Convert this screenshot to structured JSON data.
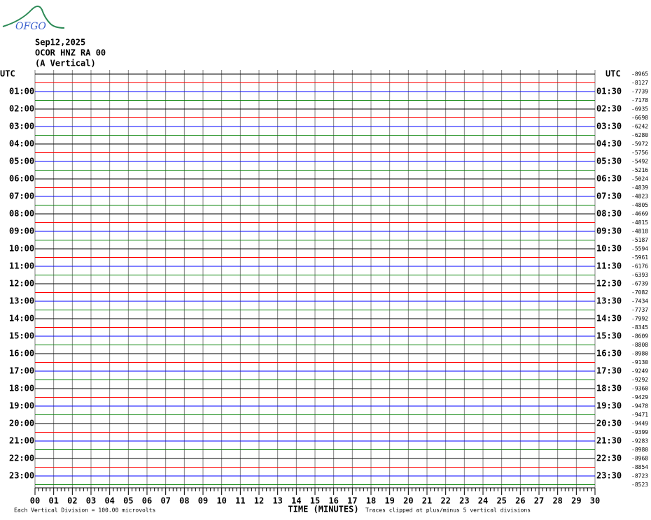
{
  "logo": "OFGO",
  "header": {
    "date": "Sep12,2025",
    "station": "OCOR HNZ RA 00",
    "component": "(A Vertical)"
  },
  "left_labels": [
    "UTC",
    "01:00",
    "02:00",
    "03:00",
    "04:00",
    "05:00",
    "06:00",
    "07:00",
    "08:00",
    "09:00",
    "10:00",
    "11:00",
    "12:00",
    "13:00",
    "14:00",
    "15:00",
    "16:00",
    "17:00",
    "18:00",
    "19:00",
    "20:00",
    "21:00",
    "22:00",
    "23:00"
  ],
  "right_labels": [
    "UTC",
    "01:30",
    "02:30",
    "03:30",
    "04:30",
    "05:30",
    "06:30",
    "07:30",
    "08:30",
    "09:30",
    "10:30",
    "11:30",
    "12:30",
    "13:30",
    "14:30",
    "15:30",
    "16:30",
    "17:30",
    "18:30",
    "19:30",
    "20:30",
    "21:30",
    "22:30",
    "23:30"
  ],
  "offsets": [
    -8965,
    -8127,
    -7739,
    -7178,
    -6935,
    -6698,
    -6242,
    -6280,
    -5972,
    -5756,
    -5492,
    -5216,
    -5024,
    -4839,
    -4823,
    -4805,
    -4669,
    -4815,
    -4818,
    -5187,
    -5594,
    -5961,
    -6176,
    -6393,
    -6739,
    -7082,
    -7434,
    -7737,
    -7992,
    -8345,
    -8609,
    -8808,
    -8980,
    -9130,
    -9249,
    -9292,
    -9360,
    -9429,
    -9478,
    -9471,
    -9449,
    -9399,
    -9283,
    -8980,
    -8968,
    -8854,
    -8723,
    -8523
  ],
  "trace_colors": [
    "#000000",
    "#ff0000",
    "#0000ff",
    "#008000"
  ],
  "x_axis": {
    "title": "TIME (MINUTES)",
    "ticks": [
      {
        "value": 0,
        "label": "00"
      },
      {
        "value": 1,
        "label": "01"
      },
      {
        "value": 2,
        "label": "02"
      },
      {
        "value": 3,
        "label": "03"
      },
      {
        "value": 4,
        "label": "04"
      },
      {
        "value": 5,
        "label": "05"
      },
      {
        "value": 6,
        "label": "06"
      },
      {
        "value": 7,
        "label": "07"
      },
      {
        "value": 8,
        "label": "08"
      },
      {
        "value": 9,
        "label": "09"
      },
      10,
      11,
      12,
      13,
      14,
      15,
      16,
      17,
      18,
      19,
      20,
      21,
      22,
      23,
      24,
      25,
      26,
      27,
      28,
      29,
      30
    ]
  },
  "footer": {
    "scale": "Each Vertical Division =  100.00 microvolts",
    "clip": "Traces clipped at plus/minus 5 vertical divisions"
  }
}
